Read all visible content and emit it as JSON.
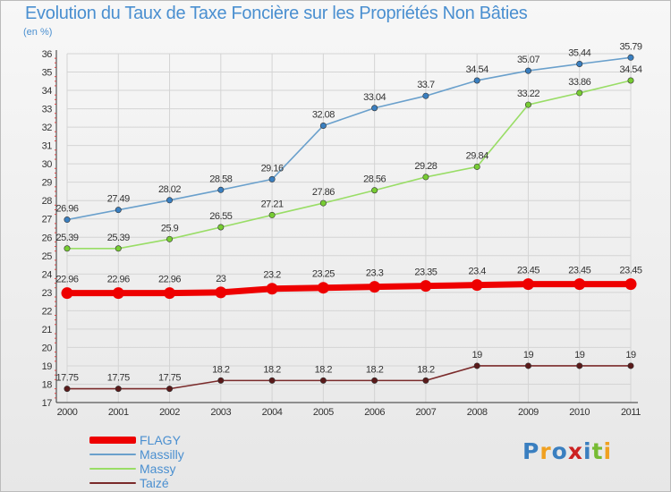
{
  "chart_data": {
    "type": "line",
    "title": "Evolution du Taux de Taxe Foncière sur les Propriétés Non Bâties",
    "unit": "(en %)",
    "x": [
      "2000",
      "2001",
      "2002",
      "2003",
      "2004",
      "2005",
      "2006",
      "2007",
      "2008",
      "2009",
      "2010",
      "2011"
    ],
    "ylim": [
      17,
      36
    ],
    "yticks": [
      17,
      18,
      19,
      20,
      21,
      22,
      23,
      24,
      25,
      26,
      27,
      28,
      29,
      30,
      31,
      32,
      33,
      34,
      35,
      36
    ],
    "grid": true,
    "series": [
      {
        "name": "FLAGY",
        "color": "#ee0000",
        "bold": true,
        "values": [
          22.96,
          22.96,
          22.96,
          23,
          23.2,
          23.25,
          23.3,
          23.35,
          23.4,
          23.45,
          23.45,
          23.45
        ],
        "labels": [
          "22.96",
          "22.96",
          "22.96",
          "23",
          "23.2",
          "23.25",
          "23.3",
          "23.35",
          "23.4",
          "23.45",
          "23.45",
          "23.45"
        ]
      },
      {
        "name": "Massilly",
        "color": "#6aa0cc",
        "dot": "#3a7fc0",
        "values": [
          26.96,
          27.49,
          28.02,
          28.58,
          29.16,
          32.08,
          33.04,
          33.7,
          34.54,
          35.07,
          35.44,
          35.79
        ],
        "labels": [
          "26.96",
          "27.49",
          "28.02",
          "28.58",
          "29.16",
          "32.08",
          "33.04",
          "33.7",
          "34.54",
          "35.07",
          "35.44",
          "35.79"
        ]
      },
      {
        "name": "Massy",
        "color": "#99dd66",
        "dot": "#77cc33",
        "values": [
          25.39,
          25.39,
          25.9,
          26.55,
          27.21,
          27.86,
          28.56,
          29.28,
          29.84,
          33.22,
          33.86,
          34.54
        ],
        "labels": [
          "25.39",
          "25.39",
          "25.9",
          "26.55",
          "27.21",
          "27.86",
          "28.56",
          "29.28",
          "29.84",
          "33.22",
          "33.86",
          "34.54"
        ]
      },
      {
        "name": "Taizé",
        "color": "#7a2a2a",
        "dot": "#5a1a1a",
        "values": [
          17.75,
          17.75,
          17.75,
          18.2,
          18.2,
          18.2,
          18.2,
          18.2,
          19,
          19,
          19,
          19
        ],
        "labels": [
          "17.75",
          "17.75",
          "17.75",
          "18.2",
          "18.2",
          "18.2",
          "18.2",
          "18.2",
          "19",
          "19",
          "19",
          "19"
        ]
      }
    ]
  },
  "legend": [
    "FLAGY",
    "Massilly",
    "Massy",
    "Taizé"
  ],
  "logo": {
    "text": "Proxiti",
    "colors": [
      "#3a7fc0",
      "#f0a020",
      "#3a7fc0",
      "#cc2222",
      "#3a7fc0",
      "#77bb33",
      "#f0a020"
    ]
  }
}
